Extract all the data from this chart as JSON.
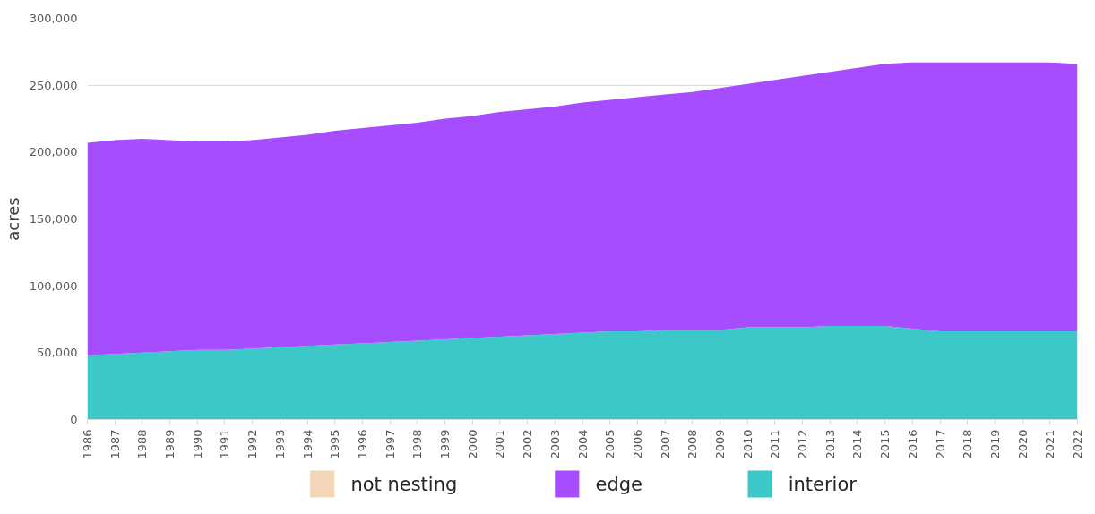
{
  "chart_data": {
    "type": "area",
    "ylabel": "acres",
    "stacked": true,
    "x": [
      1986,
      1987,
      1988,
      1989,
      1990,
      1991,
      1992,
      1993,
      1994,
      1995,
      1996,
      1997,
      1998,
      1999,
      2000,
      2001,
      2002,
      2003,
      2004,
      2005,
      2006,
      2007,
      2008,
      2009,
      2010,
      2011,
      2012,
      2013,
      2014,
      2015,
      2016,
      2017,
      2018,
      2019,
      2020,
      2021,
      2022
    ],
    "xlim": [
      1986,
      2022
    ],
    "xticks": [
      1986,
      1987,
      1988,
      1989,
      1990,
      1991,
      1992,
      1993,
      1994,
      1995,
      1996,
      1997,
      1998,
      1999,
      2000,
      2001,
      2002,
      2003,
      2004,
      2005,
      2006,
      2007,
      2008,
      2009,
      2010,
      2011,
      2012,
      2013,
      2014,
      2015,
      2016,
      2017,
      2018,
      2019,
      2020,
      2021,
      2022
    ],
    "ylim": [
      0,
      300000
    ],
    "yticks": [
      {
        "value": 0,
        "label": "0"
      },
      {
        "value": 50000,
        "label": "50,000"
      },
      {
        "value": 100000,
        "label": "100,000"
      },
      {
        "value": 150000,
        "label": "150,000"
      },
      {
        "value": 200000,
        "label": "200,000"
      },
      {
        "value": 250000,
        "label": "250,000"
      },
      {
        "value": 300000,
        "label": "300,000"
      }
    ],
    "grid": "y",
    "legend": "bottom",
    "series": [
      {
        "name": "interior",
        "color": "#3cc8c8",
        "values": [
          48000,
          49000,
          50000,
          51000,
          52000,
          52000,
          53000,
          54000,
          55000,
          56000,
          57000,
          58000,
          59000,
          60000,
          61000,
          62000,
          63000,
          64000,
          65000,
          66000,
          66000,
          67000,
          67000,
          67000,
          69000,
          69000,
          69000,
          70000,
          70000,
          70000,
          68000,
          66000,
          66000,
          66000,
          66000,
          66000,
          66000
        ]
      },
      {
        "name": "edge",
        "color": "#a64dff",
        "values": [
          159000,
          160000,
          160000,
          158000,
          156000,
          156000,
          156000,
          157000,
          158000,
          160000,
          161000,
          162000,
          163000,
          165000,
          166000,
          168000,
          169000,
          170000,
          172000,
          173000,
          175000,
          176000,
          178000,
          181000,
          182000,
          185000,
          188000,
          190000,
          193000,
          196000,
          199000,
          201000,
          201000,
          201000,
          201000,
          201000,
          200000
        ]
      },
      {
        "name": "not nesting",
        "color": "#f5d5b8",
        "values": [
          null,
          null,
          null,
          null,
          null,
          null,
          null,
          null,
          null,
          null,
          null,
          null,
          null,
          null,
          null,
          null,
          null,
          null,
          null,
          null,
          null,
          null,
          null,
          null,
          null,
          null,
          null,
          null,
          null,
          null,
          null,
          null,
          null,
          null,
          null,
          null,
          null
        ]
      }
    ]
  }
}
